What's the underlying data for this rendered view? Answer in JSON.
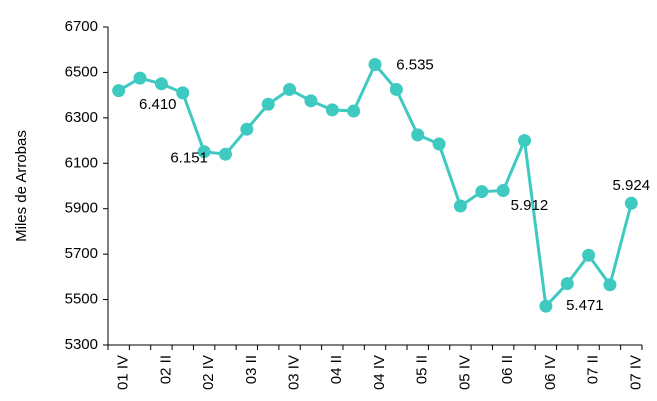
{
  "chart_data": {
    "type": "line",
    "y_label": "Miles de Arrobas",
    "categories": [
      "01 IV",
      null,
      "02 II",
      null,
      "02 IV",
      null,
      "03 II",
      null,
      "03 IV",
      null,
      "04 II",
      null,
      "04 IV",
      null,
      "05 II",
      null,
      "05 IV",
      null,
      "06 II",
      null,
      "06 IV",
      null,
      "07 II",
      null,
      "07 IV"
    ],
    "values": [
      6420,
      6475,
      6450,
      6410,
      6151,
      6140,
      6250,
      6360,
      6425,
      6375,
      6335,
      6330,
      6535,
      6425,
      6225,
      6185,
      5912,
      5975,
      5980,
      6200,
      5471,
      5570,
      5695,
      5565,
      5924
    ],
    "value_labels": [
      null,
      null,
      null,
      "6.410",
      "6.151",
      null,
      null,
      null,
      null,
      null,
      null,
      null,
      "6.535",
      null,
      null,
      null,
      "5.912",
      null,
      null,
      null,
      "5.471",
      null,
      null,
      null,
      "5.924"
    ],
    "color": "#3ec9c1",
    "ylim": [
      5300,
      6700
    ],
    "yticks": [
      5300,
      5500,
      5700,
      5900,
      6100,
      6300,
      6500,
      6700
    ],
    "grid": false
  }
}
